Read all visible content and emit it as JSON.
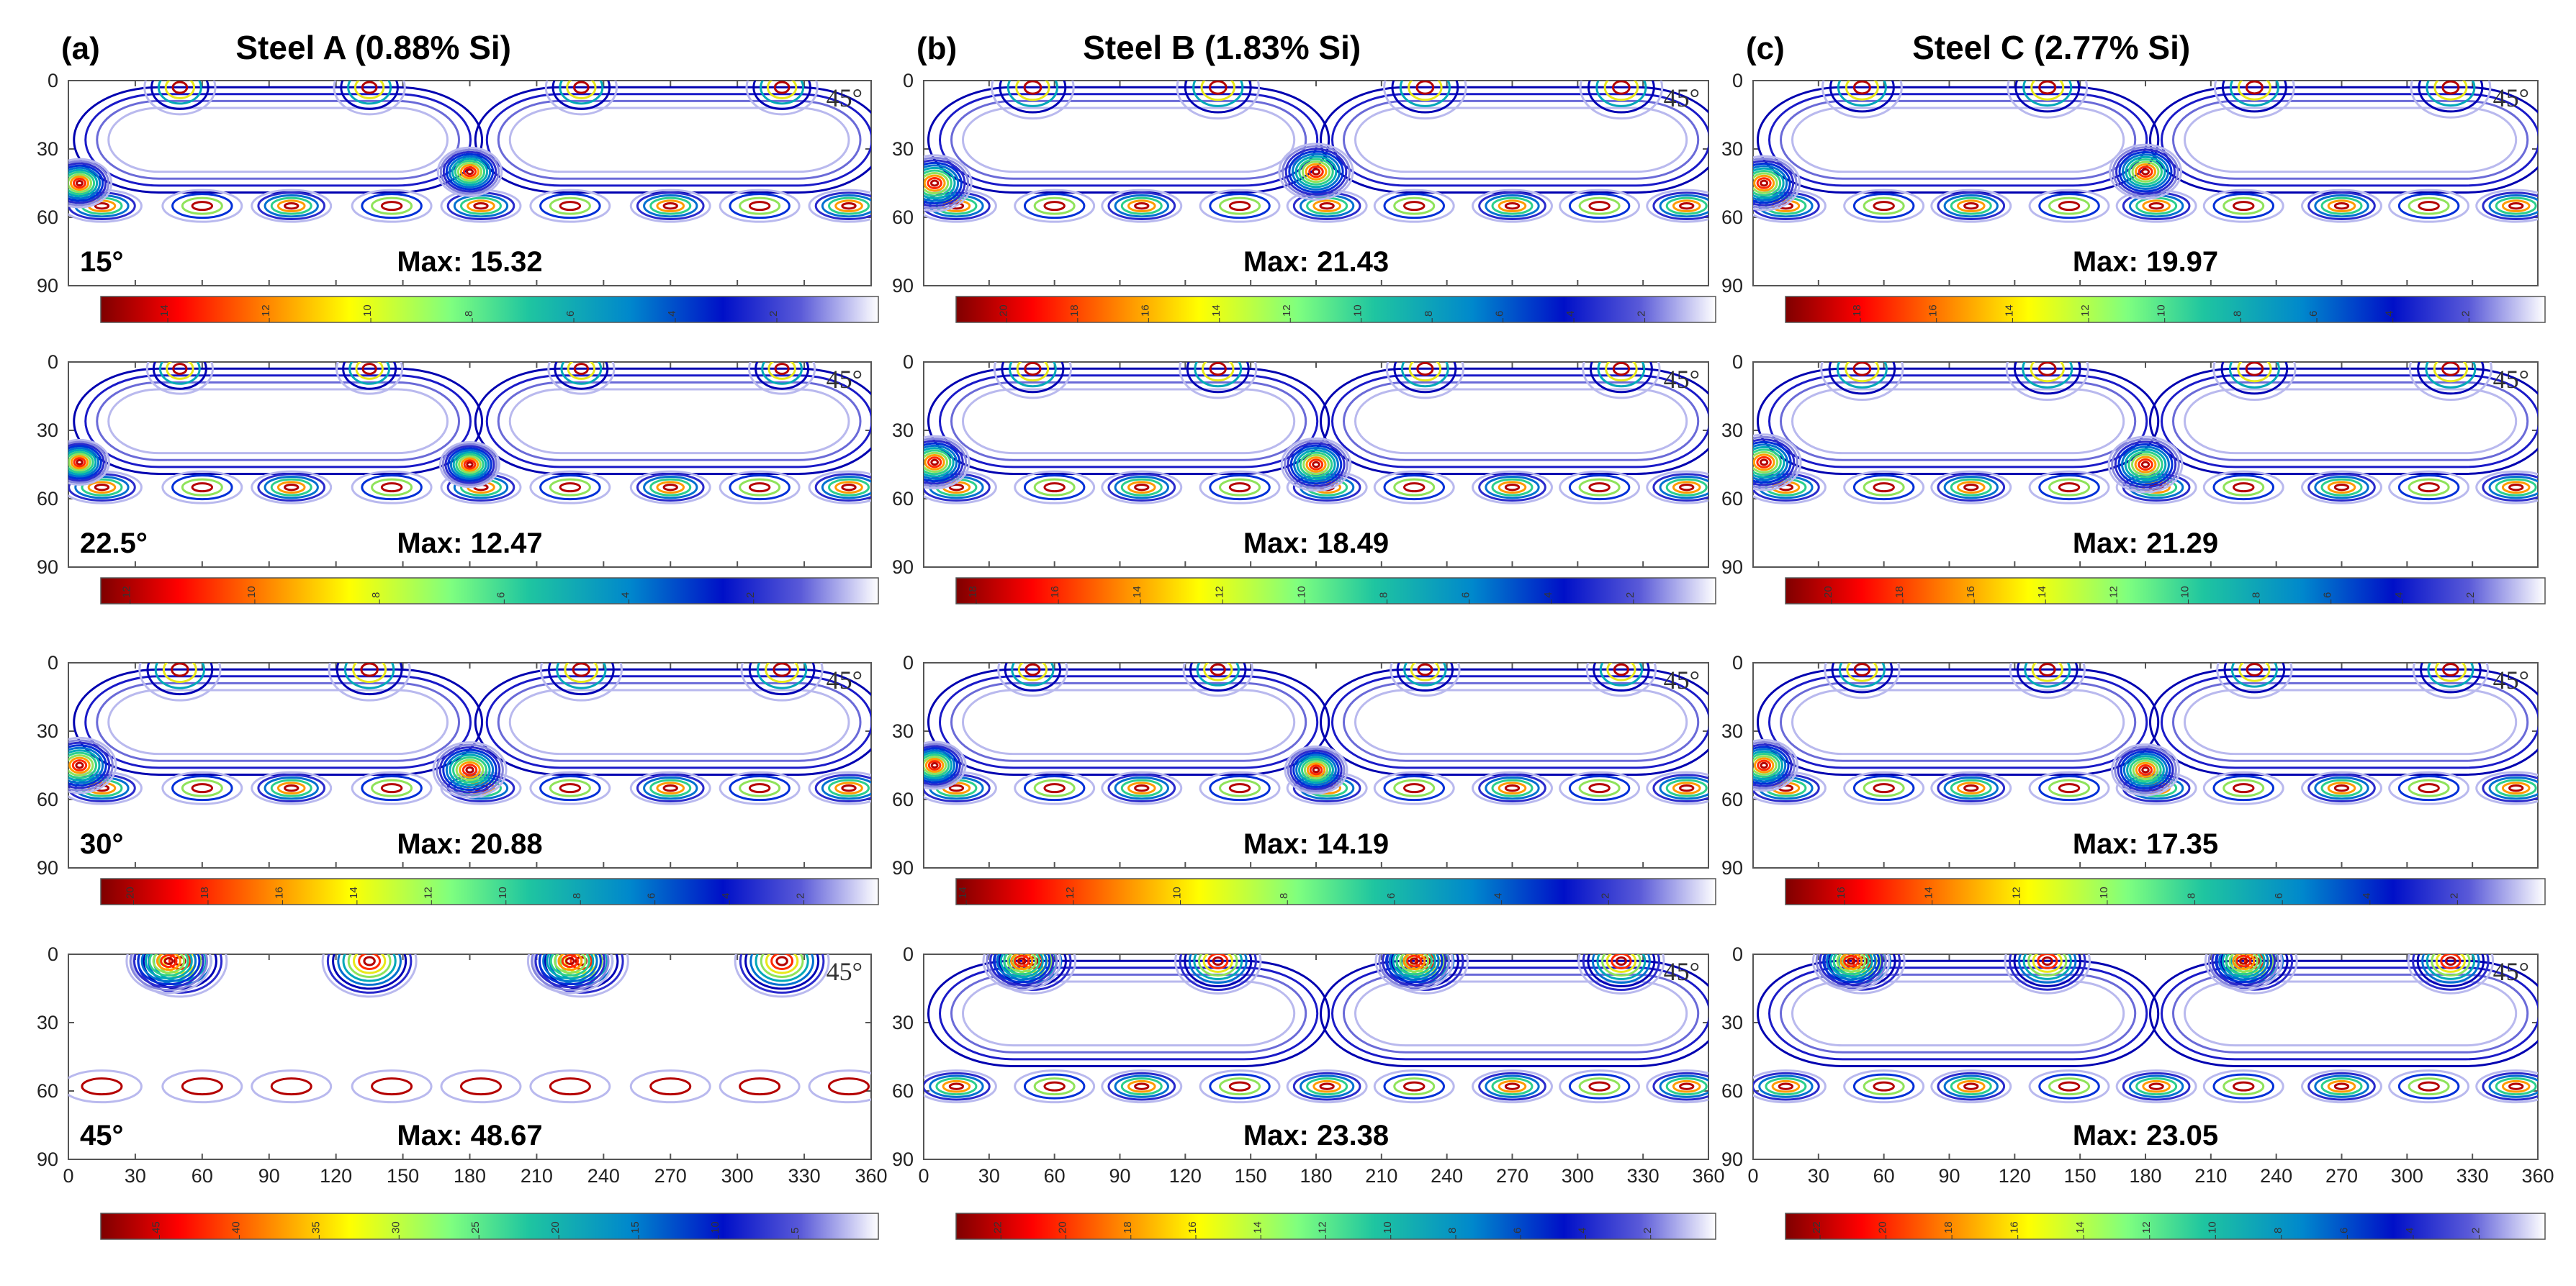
{
  "chart_data": {
    "type": "contour",
    "description_axes": {
      "x_ticks": [
        "0",
        "30",
        "60",
        "90",
        "120",
        "150",
        "180",
        "210",
        "240",
        "270",
        "300",
        "330",
        "360"
      ],
      "y_ticks": [
        "0",
        "30",
        "60",
        "90"
      ],
      "xlim": [
        0,
        360
      ],
      "ylim": [
        0,
        90
      ]
    },
    "corner_label": "45°",
    "columns": [
      {
        "label": "(a)",
        "title": "Steel A (0.88% Si)",
        "panels": [
          {
            "phi": "15°",
            "max_label": "Max: 15.32",
            "max": 15.32,
            "colorbar_ticks": [
              "14",
              "12",
              "10",
              "8",
              "6",
              "4",
              "2"
            ]
          },
          {
            "phi": "22.5°",
            "max_label": "Max: 12.47",
            "max": 12.47,
            "colorbar_ticks": [
              "12",
              "10",
              "8",
              "6",
              "4",
              "2"
            ]
          },
          {
            "phi": "30°",
            "max_label": "Max: 20.88",
            "max": 20.88,
            "colorbar_ticks": [
              "20",
              "18",
              "16",
              "14",
              "12",
              "10",
              "8",
              "6",
              "4",
              "2"
            ]
          },
          {
            "phi": "45°",
            "max_label": "Max: 48.67",
            "max": 48.67,
            "colorbar_ticks": [
              "45",
              "40",
              "35",
              "30",
              "25",
              "20",
              "15",
              "10",
              "5"
            ]
          }
        ]
      },
      {
        "label": "(b)",
        "title": "Steel B (1.83% Si)",
        "panels": [
          {
            "phi": "",
            "max_label": "Max: 21.43",
            "max": 21.43,
            "colorbar_ticks": [
              "20",
              "18",
              "16",
              "14",
              "12",
              "10",
              "8",
              "6",
              "4",
              "2"
            ]
          },
          {
            "phi": "",
            "max_label": "Max: 18.49",
            "max": 18.49,
            "colorbar_ticks": [
              "18",
              "16",
              "14",
              "12",
              "10",
              "8",
              "6",
              "4",
              "2"
            ]
          },
          {
            "phi": "",
            "max_label": "Max: 14.19",
            "max": 14.19,
            "colorbar_ticks": [
              "14",
              "12",
              "10",
              "8",
              "6",
              "4",
              "2"
            ]
          },
          {
            "phi": "",
            "max_label": "Max: 23.38",
            "max": 23.38,
            "colorbar_ticks": [
              "22",
              "20",
              "18",
              "16",
              "14",
              "12",
              "10",
              "8",
              "6",
              "4",
              "2"
            ]
          }
        ]
      },
      {
        "label": "(c)",
        "title": "Steel C (2.77% Si)",
        "panels": [
          {
            "phi": "",
            "max_label": "Max: 19.97",
            "max": 19.97,
            "colorbar_ticks": [
              "18",
              "16",
              "14",
              "12",
              "10",
              "8",
              "6",
              "4",
              "2"
            ]
          },
          {
            "phi": "",
            "max_label": "Max: 21.29",
            "max": 21.29,
            "colorbar_ticks": [
              "20",
              "18",
              "16",
              "14",
              "12",
              "10",
              "8",
              "6",
              "4",
              "2"
            ]
          },
          {
            "phi": "",
            "max_label": "Max: 17.35",
            "max": 17.35,
            "colorbar_ticks": [
              "16",
              "14",
              "12",
              "10",
              "8",
              "6",
              "4",
              "2"
            ]
          },
          {
            "phi": "",
            "max_label": "Max: 23.05",
            "max": 23.05,
            "colorbar_ticks": [
              "22",
              "20",
              "18",
              "16",
              "14",
              "12",
              "10",
              "8",
              "6",
              "4",
              "2"
            ]
          }
        ]
      }
    ]
  }
}
